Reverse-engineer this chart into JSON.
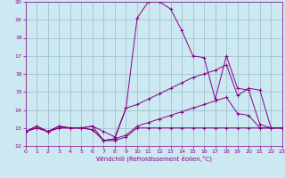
{
  "xlabel": "Windchill (Refroidissement éolien,°C)",
  "xlim": [
    0,
    23
  ],
  "ylim": [
    12,
    20
  ],
  "yticks": [
    12,
    13,
    14,
    15,
    16,
    17,
    18,
    19,
    20
  ],
  "xticks": [
    0,
    1,
    2,
    3,
    4,
    5,
    6,
    7,
    8,
    9,
    10,
    11,
    12,
    13,
    14,
    15,
    16,
    17,
    18,
    19,
    20,
    21,
    22,
    23
  ],
  "background_color": "#cce8f0",
  "line_color": "#880088",
  "grid_color": "#99bbcc",
  "line1_x": [
    0,
    1,
    2,
    3,
    4,
    5,
    6,
    7,
    8,
    9,
    10,
    11,
    12,
    13,
    14,
    15,
    16,
    17,
    18,
    19,
    20,
    21,
    22,
    23
  ],
  "line1_y": [
    12.8,
    13.0,
    12.8,
    13.0,
    13.0,
    13.0,
    12.9,
    12.3,
    12.3,
    12.5,
    13.0,
    13.0,
    13.0,
    13.0,
    13.0,
    13.0,
    13.0,
    13.0,
    13.0,
    13.0,
    13.0,
    13.0,
    13.0,
    13.0
  ],
  "line2_x": [
    0,
    1,
    2,
    3,
    4,
    5,
    6,
    7,
    8,
    9,
    10,
    11,
    12,
    13,
    14,
    15,
    16,
    17,
    18,
    19,
    20,
    21,
    22,
    23
  ],
  "line2_y": [
    12.8,
    13.0,
    12.8,
    13.0,
    13.0,
    13.0,
    12.9,
    12.3,
    12.4,
    12.6,
    13.1,
    13.3,
    13.5,
    13.7,
    13.9,
    14.1,
    14.3,
    14.5,
    14.7,
    13.8,
    13.7,
    13.0,
    13.0,
    13.0
  ],
  "line3_x": [
    0,
    1,
    2,
    3,
    4,
    5,
    6,
    7,
    8,
    9,
    10,
    11,
    12,
    13,
    14,
    15,
    16,
    17,
    18,
    19,
    20,
    21,
    22,
    23
  ],
  "line3_y": [
    12.8,
    13.1,
    12.8,
    13.1,
    13.0,
    13.0,
    13.1,
    12.8,
    12.5,
    14.1,
    14.3,
    14.6,
    14.9,
    15.2,
    15.5,
    15.8,
    16.0,
    16.2,
    16.5,
    14.8,
    15.2,
    15.1,
    13.0,
    13.0
  ],
  "line4_x": [
    0,
    1,
    2,
    3,
    4,
    5,
    6,
    7,
    8,
    9,
    10,
    11,
    12,
    13,
    14,
    15,
    16,
    17,
    18,
    19,
    20,
    21,
    22,
    23
  ],
  "line4_y": [
    12.8,
    13.1,
    12.8,
    13.1,
    13.0,
    13.0,
    13.1,
    12.3,
    12.4,
    14.1,
    19.1,
    20.0,
    20.0,
    19.6,
    18.4,
    17.0,
    16.9,
    14.6,
    17.0,
    15.2,
    15.1,
    13.2,
    13.0,
    13.0
  ]
}
